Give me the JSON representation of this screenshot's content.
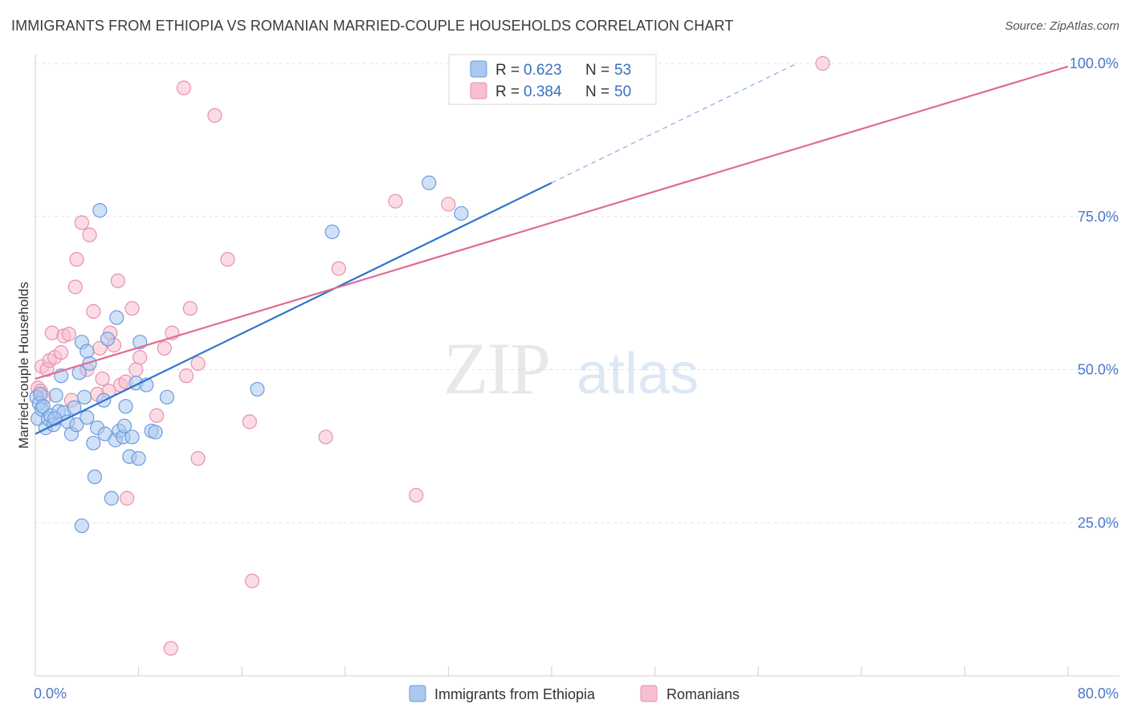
{
  "title": "IMMIGRANTS FROM ETHIOPIA VS ROMANIAN MARRIED-COUPLE HOUSEHOLDS CORRELATION CHART",
  "source": "Source: ZipAtlas.com",
  "watermark": {
    "zip": "ZIP",
    "atlas": "atlas"
  },
  "colors": {
    "blue_fill": "#aac8f0",
    "blue_stroke": "#6e9bdc",
    "blue_line": "#2f74d0",
    "pink_fill": "#f7bfd0",
    "pink_stroke": "#e890ab",
    "pink_line": "#e06b94",
    "tick_text": "#4a78c8",
    "grid": "#e3e3e3"
  },
  "legend_top": {
    "rows": [
      {
        "r_label": "R =",
        "r_value": "0.623",
        "n_label": "N =",
        "n_value": "53",
        "color": "blue"
      },
      {
        "r_label": "R =",
        "r_value": "0.384",
        "n_label": "N =",
        "n_value": "50",
        "color": "pink"
      }
    ]
  },
  "legend_bottom": [
    {
      "label": "Immigrants from Ethiopia",
      "color": "blue"
    },
    {
      "label": "Romanians",
      "color": "pink"
    }
  ],
  "chart_data": {
    "type": "scatter",
    "title": "IMMIGRANTS FROM ETHIOPIA VS ROMANIAN MARRIED-COUPLE HOUSEHOLDS CORRELATION CHART",
    "xlabel": "",
    "ylabel": "Married-couple Households",
    "xlim": [
      0,
      80
    ],
    "ylim": [
      0,
      100
    ],
    "x_tick_labels": [
      {
        "value": 0,
        "label": "0.0%"
      },
      {
        "value": 80,
        "label": "80.0%"
      }
    ],
    "x_tick_marks": [
      0,
      8,
      16,
      24,
      32,
      40,
      48,
      56,
      64,
      72,
      80
    ],
    "y_ticks": [
      {
        "value": 25,
        "label": "25.0%"
      },
      {
        "value": 50,
        "label": "50.0%"
      },
      {
        "value": 75,
        "label": "75.0%"
      },
      {
        "value": 100,
        "label": "100.0%"
      }
    ],
    "series": [
      {
        "name": "Immigrants from Ethiopia",
        "color": "blue",
        "R": 0.623,
        "N": 53,
        "trend": {
          "x0": 0,
          "y0": 39.5,
          "x1": 40,
          "y1": 80.5,
          "dash_to_x": 59,
          "dash_to_y": 100
        },
        "points": [
          [
            0.1,
            45.5
          ],
          [
            0.2,
            42.0
          ],
          [
            0.3,
            44.5
          ],
          [
            0.4,
            46.0
          ],
          [
            0.5,
            43.5
          ],
          [
            0.6,
            44.0
          ],
          [
            0.8,
            40.5
          ],
          [
            1.0,
            42.0
          ],
          [
            1.2,
            42.5
          ],
          [
            1.4,
            41.0
          ],
          [
            1.6,
            45.8
          ],
          [
            1.8,
            43.2
          ],
          [
            2.0,
            49.0
          ],
          [
            2.2,
            43.0
          ],
          [
            2.5,
            41.5
          ],
          [
            2.8,
            39.5
          ],
          [
            3.0,
            43.8
          ],
          [
            3.2,
            41.0
          ],
          [
            3.4,
            49.5
          ],
          [
            3.6,
            54.5
          ],
          [
            3.8,
            45.5
          ],
          [
            4.0,
            53.0
          ],
          [
            4.0,
            42.2
          ],
          [
            4.2,
            51.0
          ],
          [
            4.5,
            38.0
          ],
          [
            4.6,
            32.5
          ],
          [
            4.8,
            40.5
          ],
          [
            5.0,
            76.0
          ],
          [
            5.3,
            45.0
          ],
          [
            5.4,
            39.5
          ],
          [
            5.6,
            55.0
          ],
          [
            5.9,
            29.0
          ],
          [
            6.2,
            38.5
          ],
          [
            6.3,
            58.5
          ],
          [
            6.5,
            40.0
          ],
          [
            6.8,
            39.0
          ],
          [
            6.9,
            40.8
          ],
          [
            7.0,
            44.0
          ],
          [
            7.3,
            35.8
          ],
          [
            7.5,
            39.0
          ],
          [
            7.8,
            47.8
          ],
          [
            8.0,
            35.5
          ],
          [
            8.1,
            54.5
          ],
          [
            8.6,
            47.5
          ],
          [
            9.0,
            40.0
          ],
          [
            9.3,
            39.8
          ],
          [
            10.2,
            45.5
          ],
          [
            3.6,
            24.5
          ],
          [
            17.2,
            46.8
          ],
          [
            23.0,
            72.5
          ],
          [
            30.5,
            80.5
          ],
          [
            33.0,
            75.5
          ],
          [
            1.5,
            42.0
          ]
        ]
      },
      {
        "name": "Romanians",
        "color": "pink",
        "R": 0.384,
        "N": 50,
        "trend": {
          "x0": 0,
          "y0": 48.5,
          "x1": 80,
          "y1": 99.5
        },
        "points": [
          [
            0.2,
            47.0
          ],
          [
            0.4,
            46.5
          ],
          [
            0.5,
            50.5
          ],
          [
            0.7,
            45.5
          ],
          [
            0.9,
            50.0
          ],
          [
            1.1,
            51.5
          ],
          [
            1.3,
            56.0
          ],
          [
            1.5,
            52.0
          ],
          [
            2.0,
            52.8
          ],
          [
            2.2,
            55.5
          ],
          [
            2.6,
            55.8
          ],
          [
            2.8,
            45.0
          ],
          [
            3.1,
            63.5
          ],
          [
            3.2,
            68.0
          ],
          [
            3.6,
            74.0
          ],
          [
            4.0,
            50.0
          ],
          [
            4.2,
            72.0
          ],
          [
            4.5,
            59.5
          ],
          [
            4.8,
            46.0
          ],
          [
            5.0,
            53.5
          ],
          [
            5.2,
            48.5
          ],
          [
            5.7,
            46.5
          ],
          [
            5.8,
            56.0
          ],
          [
            6.1,
            54.0
          ],
          [
            6.4,
            64.5
          ],
          [
            6.6,
            47.5
          ],
          [
            7.0,
            48.0
          ],
          [
            7.1,
            29.0
          ],
          [
            7.5,
            60.0
          ],
          [
            7.8,
            50.0
          ],
          [
            8.1,
            52.0
          ],
          [
            9.4,
            42.5
          ],
          [
            10.0,
            53.5
          ],
          [
            10.6,
            56.0
          ],
          [
            10.5,
            4.5
          ],
          [
            11.5,
            96.0
          ],
          [
            11.7,
            49.0
          ],
          [
            12.0,
            60.0
          ],
          [
            12.6,
            51.0
          ],
          [
            12.6,
            35.5
          ],
          [
            13.9,
            91.5
          ],
          [
            14.9,
            68.0
          ],
          [
            16.6,
            41.5
          ],
          [
            16.8,
            15.5
          ],
          [
            22.5,
            39.0
          ],
          [
            23.5,
            66.5
          ],
          [
            27.9,
            77.5
          ],
          [
            29.5,
            29.5
          ],
          [
            32.0,
            77.0
          ],
          [
            61.0,
            100.0
          ]
        ]
      }
    ]
  }
}
